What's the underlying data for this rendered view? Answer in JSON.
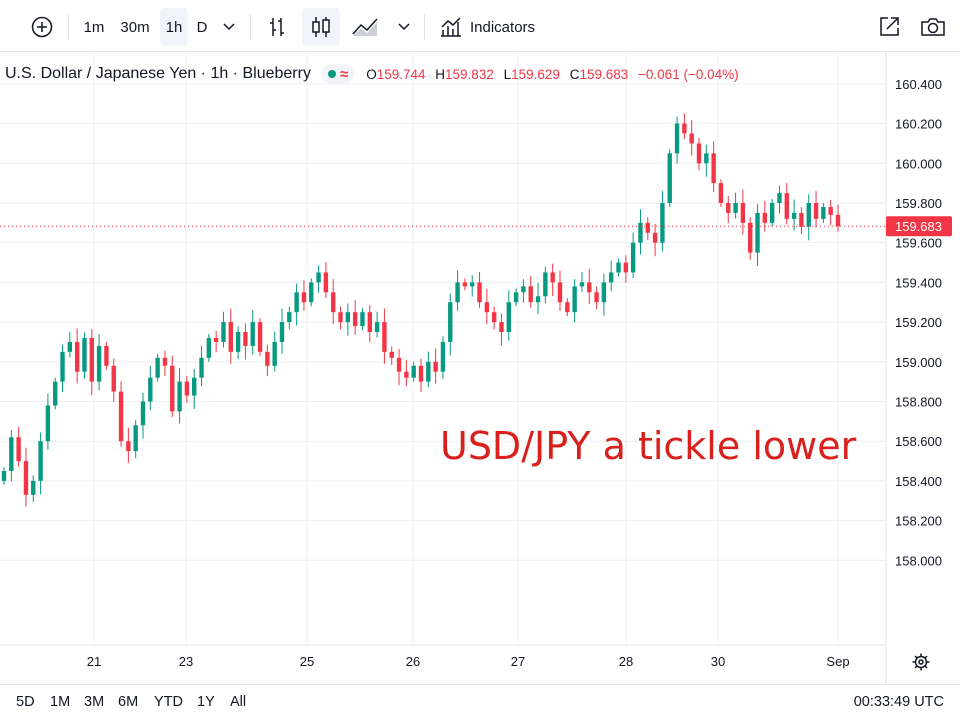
{
  "toolbar": {
    "add_icon": "plus-circle-icon",
    "intervals": [
      "1m",
      "30m",
      "1h",
      "D"
    ],
    "active_interval": "1h",
    "indicators_label": "Indicators"
  },
  "legend": {
    "symbol_text": "U.S. Dollar / Japanese Yen · 1h · Blueberry",
    "o_key": "O",
    "o_val": "159.744",
    "h_key": "H",
    "h_val": "159.832",
    "l_key": "L",
    "l_val": "159.629",
    "c_key": "C",
    "c_val": "159.683",
    "change": "−0.061 (−0.04%)"
  },
  "bottom": {
    "ranges": [
      "5D",
      "1M",
      "3M",
      "6M",
      "YTD",
      "1Y",
      "All"
    ],
    "clock": "00:33:49 UTC"
  },
  "colors": {
    "up": "#089981",
    "down": "#f23645",
    "annotation": "#d9201c"
  },
  "chart_data": {
    "type": "candlestick",
    "x_ticks": [
      "21",
      "23",
      "25",
      "26",
      "27",
      "28",
      "30",
      "Sep"
    ],
    "y_ticks": [
      "158.000",
      "158.200",
      "158.400",
      "158.600",
      "158.800",
      "159.000",
      "159.200",
      "159.400",
      "159.600",
      "159.800",
      "160.000",
      "160.200",
      "160.400"
    ],
    "ylim": [
      157.8,
      160.48
    ],
    "last_price": "159.683",
    "last_price_value": 159.683,
    "annotation": "USD/JPY a tickle lower",
    "closes": [
      158.45,
      158.62,
      158.5,
      158.33,
      158.4,
      158.6,
      158.78,
      158.9,
      159.05,
      159.1,
      158.95,
      159.12,
      158.9,
      159.08,
      158.98,
      158.85,
      158.6,
      158.55,
      158.68,
      158.8,
      158.92,
      159.02,
      158.98,
      158.75,
      158.9,
      158.83,
      158.92,
      159.02,
      159.12,
      159.1,
      159.2,
      159.05,
      159.15,
      159.08,
      159.2,
      159.05,
      158.98,
      159.1,
      159.2,
      159.25,
      159.35,
      159.3,
      159.4,
      159.45,
      159.35,
      159.25,
      159.2,
      159.25,
      159.18,
      159.25,
      159.15,
      159.2,
      159.05,
      159.02,
      158.95,
      158.92,
      158.98,
      158.9,
      159.0,
      158.95,
      159.1,
      159.3,
      159.4,
      159.38,
      159.4,
      159.3,
      159.25,
      159.2,
      159.15,
      159.3,
      159.35,
      159.38,
      159.3,
      159.33,
      159.45,
      159.4,
      159.3,
      159.25,
      159.38,
      159.4,
      159.35,
      159.3,
      159.4,
      159.45,
      159.5,
      159.45,
      159.6,
      159.7,
      159.65,
      159.6,
      159.8,
      160.05,
      160.2,
      160.15,
      160.1,
      160.0,
      160.05,
      159.9,
      159.8,
      159.75,
      159.8,
      159.7,
      159.55,
      159.75,
      159.7,
      159.8,
      159.85,
      159.72,
      159.75,
      159.68,
      159.8,
      159.72,
      159.78,
      159.74,
      159.683
    ]
  }
}
